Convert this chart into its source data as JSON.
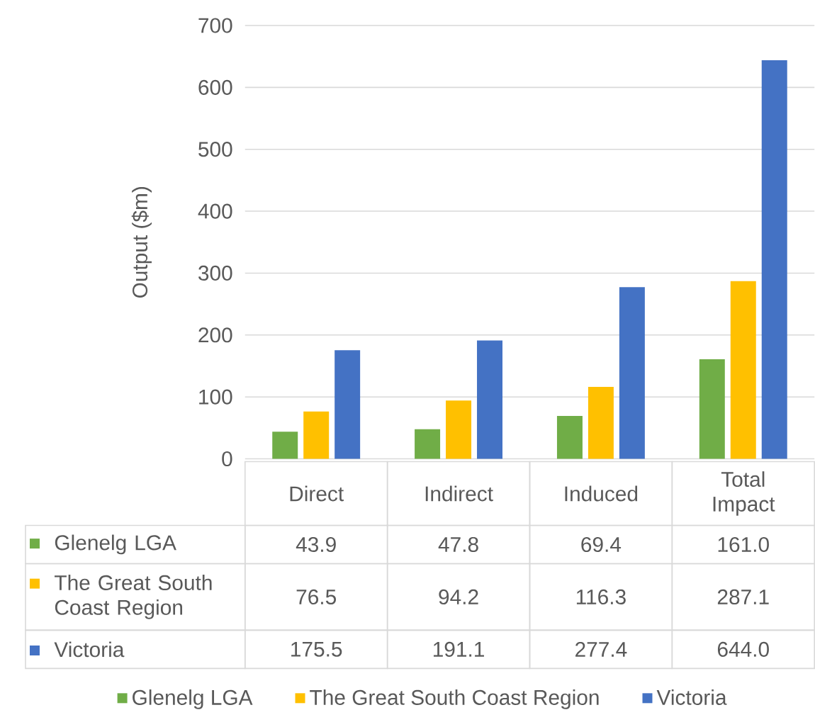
{
  "chart_data": {
    "type": "bar",
    "ylabel": "Output ($m)",
    "categories": [
      "Direct",
      "Indirect",
      "Induced",
      "Total Impact"
    ],
    "series": [
      {
        "name": "Glenelg LGA",
        "color": "#70ad47",
        "values": [
          43.9,
          47.8,
          69.4,
          161.0
        ],
        "value_labels": [
          "43.9",
          "47.8",
          "69.4",
          "161.0"
        ]
      },
      {
        "name": "The Great South Coast Region",
        "color": "#ffc000",
        "values": [
          76.5,
          94.2,
          116.3,
          287.1
        ],
        "value_labels": [
          "76.5",
          "94.2",
          "116.3",
          "287.1"
        ]
      },
      {
        "name": "Victoria",
        "color": "#4472c4",
        "values": [
          175.5,
          191.1,
          277.4,
          644.0
        ],
        "value_labels": [
          "175.5",
          "191.1",
          "277.4",
          "644.0"
        ]
      }
    ],
    "ylim": [
      0,
      700
    ],
    "yticks": [
      0,
      100,
      200,
      300,
      400,
      500,
      600,
      700
    ],
    "grid": "y",
    "legend": "bottom"
  }
}
